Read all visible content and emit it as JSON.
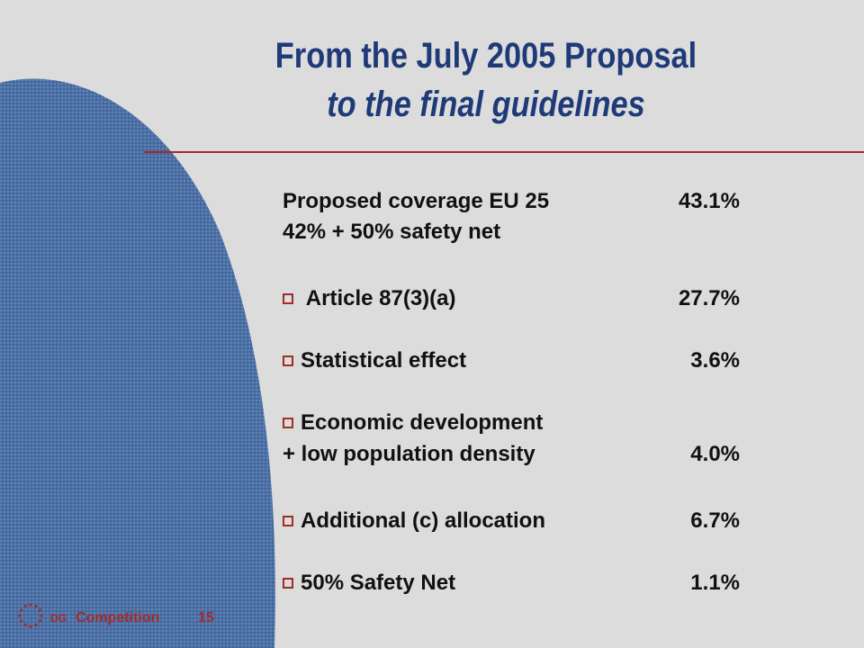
{
  "slide": {
    "title_line1": "From the July 2005 Proposal",
    "title_line2": "to the final guidelines",
    "colors": {
      "title": "#1f3a78",
      "accent": "#a52a2a",
      "background": "#dcdcdc",
      "shape": "#4a6fa5"
    },
    "rows": [
      {
        "label": "Proposed coverage EU 25",
        "value": "43.1%",
        "bullet": false
      },
      {
        "label": "42% + 50% safety net",
        "value": "",
        "bullet": false
      },
      {
        "label": " Article 87(3)(a)",
        "value": "27.7%",
        "bullet": true
      },
      {
        "label": "Statistical effect",
        "value": "3.6%",
        "bullet": true
      },
      {
        "label": "Economic development",
        "value": "",
        "bullet": true
      },
      {
        "label": "+ low population density",
        "value": "4.0%",
        "bullet": false
      },
      {
        "label": "Additional (c) allocation",
        "value": "6.7%",
        "bullet": true
      },
      {
        "label": "50% Safety Net",
        "value": "1.1%",
        "bullet": true
      }
    ]
  },
  "footer": {
    "logo_icon": "eu-stars-icon",
    "dg_abbr": "DG",
    "dg_name": "Competition",
    "page_number": "15"
  }
}
